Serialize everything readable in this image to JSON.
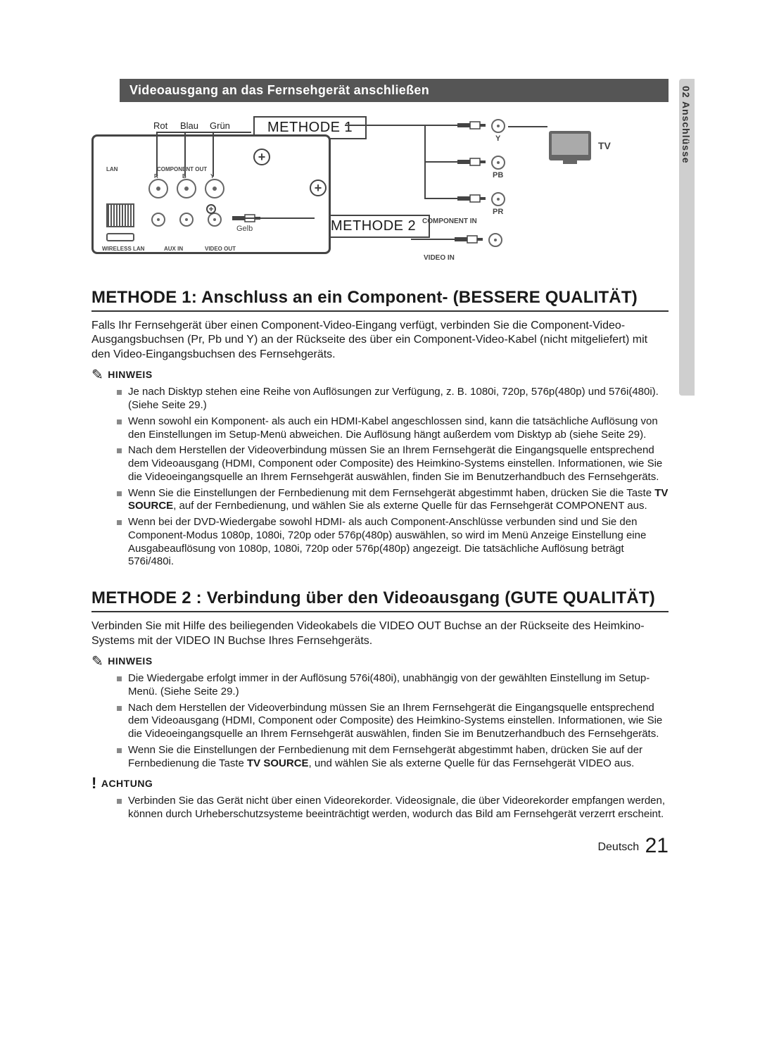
{
  "sideTab": "02  Anschlüsse",
  "banner": "Videoausgang an das Fernsehgerät anschließen",
  "diagram": {
    "colorLabels": [
      "Rot",
      "Blau",
      "Grün"
    ],
    "method1": "METHODE 1",
    "method2": "METHODE 2",
    "yellow": "Gelb",
    "tv": "TV",
    "jackY": "Y",
    "jackPb": "PB",
    "jackPr": "PR",
    "componentIn": "COMPONENT IN",
    "videoIn": "VIDEO IN",
    "lan": "LAN",
    "componentOut": "COMPONENT OUT",
    "wirelessLan": "WIRELESS LAN",
    "auxIn": "AUX IN",
    "videoOut": "VIDEO OUT",
    "rby": [
      "R",
      "B",
      "Y"
    ]
  },
  "m1": {
    "heading": "METHODE 1: Anschluss an ein Component- (BESSERE QUALITÄT)",
    "para": "Falls Ihr Fernsehgerät über einen Component-Video-Eingang verfügt, verbinden Sie die Component-Video-Ausgangsbuchsen (Pr, Pb und Y) an der Rückseite des  über ein Component-Video-Kabel (nicht mitgeliefert) mit den Video-Eingangsbuchsen des Fernsehgeräts.",
    "noteLabel": "HINWEIS",
    "notes": [
      "Je nach Disktyp stehen eine Reihe von Auflösungen zur Verfügung, z. B. 1080i, 720p, 576p(480p) und 576i(480i). (Siehe Seite 29.)",
      "Wenn sowohl ein Komponent- als auch ein HDMI-Kabel angeschlossen sind, kann die tatsächliche Auflösung von den Einstellungen im Setup-Menü abweichen. Die Auflösung hängt außerdem vom Disktyp ab (siehe Seite 29).",
      "Nach dem Herstellen der Videoverbindung müssen Sie an Ihrem Fernsehgerät die Eingangsquelle entsprechend dem Videoausgang (HDMI, Component oder Composite) des Heimkino-Systems einstellen. Informationen, wie Sie die Videoeingangsquelle an Ihrem Fernsehgerät auswählen, finden Sie im Benutzerhandbuch des Fernsehgeräts.",
      "Wenn Sie die Einstellungen der Fernbedienung mit dem Fernsehgerät abgestimmt haben, drücken Sie die Taste <b>TV SOURCE</b>, auf der Fernbedienung, und wählen Sie als externe Quelle für das Fernsehgerät COMPONENT aus.",
      "Wenn bei der DVD-Wiedergabe sowohl HDMI- als auch Component-Anschlüsse verbunden sind und Sie den Component-Modus 1080p, 1080i, 720p oder 576p(480p) auswählen, so wird im Menü Anzeige Einstellung eine Ausgabeauflösung von 1080p, 1080i, 720p oder 576p(480p) angezeigt. Die tatsächliche Auflösung beträgt 576i/480i."
    ]
  },
  "m2": {
    "heading": "METHODE 2 : Verbindung über den Videoausgang (GUTE QUALITÄT)",
    "para": "Verbinden Sie mit Hilfe des beiliegenden Videokabels die VIDEO OUT Buchse an der Rückseite des Heimkino-Systems mit der VIDEO IN Buchse Ihres Fernsehgeräts.",
    "noteLabel": "HINWEIS",
    "notes": [
      "Die Wiedergabe erfolgt immer in der Auflösung 576i(480i), unabhängig von der gewählten Einstellung im Setup-Menü. (Siehe Seite 29.)",
      "Nach dem Herstellen der Videoverbindung müssen Sie an Ihrem Fernsehgerät die Eingangsquelle entsprechend dem Videoausgang (HDMI, Component oder Composite) des Heimkino-Systems einstellen. Informationen, wie Sie die Videoeingangsquelle an Ihrem Fernsehgerät auswählen, finden Sie im Benutzerhandbuch des Fernsehgeräts.",
      "Wenn Sie die Einstellungen der Fernbedienung mit dem Fernsehgerät abgestimmt haben, drücken Sie auf der Fernbedienung die Taste <b>TV SOURCE</b>, und wählen Sie als externe Quelle für das Fernsehgerät VIDEO aus."
    ],
    "cautionLabel": "ACHTUNG",
    "caution": [
      "Verbinden Sie das Gerät nicht über einen Videorekorder. Videosignale, die über Videorekorder empfangen werden, können durch Urheberschutzsysteme beeinträchtigt werden, wodurch das Bild am Fernsehgerät verzerrt erscheint."
    ]
  },
  "footer": {
    "lang": "Deutsch",
    "page": "21"
  }
}
